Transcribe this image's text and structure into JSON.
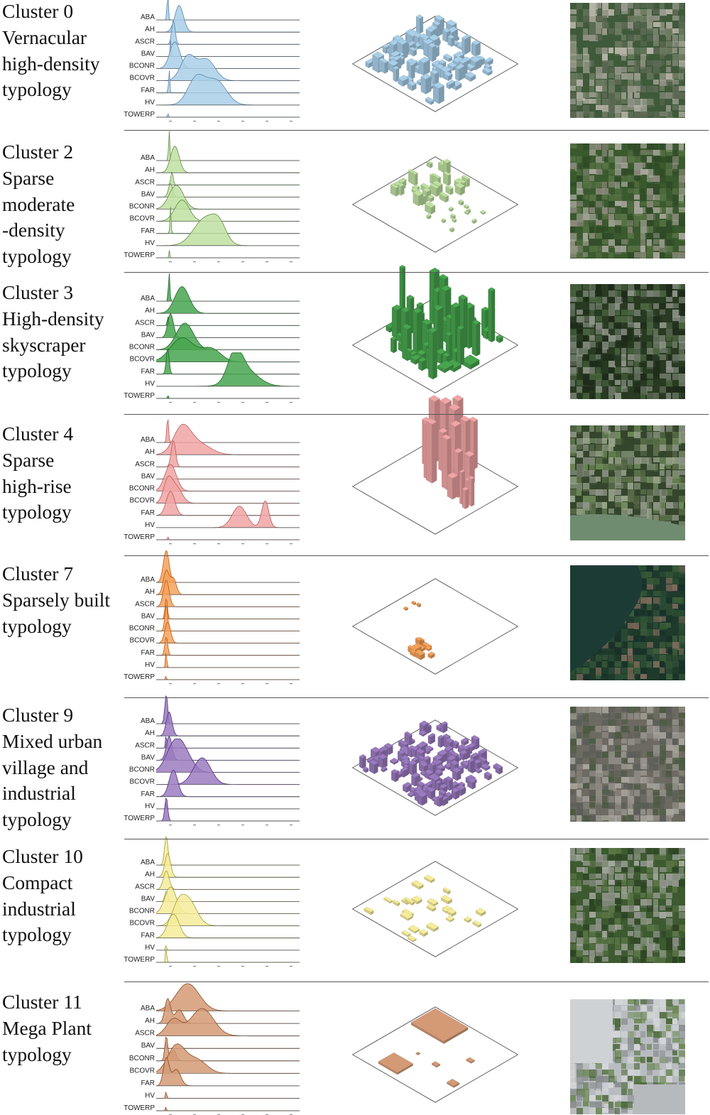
{
  "figure": {
    "metrics": [
      "ABA",
      "AH",
      "ASCR",
      "BAV",
      "BCONR",
      "BCOVR",
      "FAR",
      "HV",
      "TOWERP"
    ],
    "clusters": [
      {
        "id": "cluster-0",
        "label_lines": [
          "Cluster 0",
          "Vernacular",
          "high-density",
          "typology"
        ],
        "color": "#a9cfe9",
        "edge": "#5d86a6",
        "satellite_icon": "aerial-photo-icon",
        "satellite_palette": [
          "#3f5a3a",
          "#6f7d62",
          "#9a9a8e",
          "#5e6a55",
          "#b6b2a6"
        ]
      },
      {
        "id": "cluster-2",
        "label_lines": [
          "Cluster 2",
          "Sparse",
          "moderate",
          "-density",
          "typology"
        ],
        "color": "#bfe0a1",
        "edge": "#5f8a44",
        "satellite_icon": "aerial-photo-icon",
        "satellite_palette": [
          "#3a5a2e",
          "#587346",
          "#8e8a7e",
          "#2f4a27",
          "#a8a69c"
        ]
      },
      {
        "id": "cluster-3",
        "label_lines": [
          "Cluster 3",
          "High-density",
          "skyscraper",
          "typology"
        ],
        "color": "#48a54f",
        "edge": "#1f6a28",
        "satellite_icon": "aerial-photo-icon",
        "satellite_palette": [
          "#283a22",
          "#4b6640",
          "#8d9488",
          "#1e2a1a",
          "#6c7866"
        ]
      },
      {
        "id": "cluster-4",
        "label_lines": [
          "Cluster 4",
          "Sparse",
          "high-rise",
          "typology"
        ],
        "color": "#f1a5a5",
        "edge": "#b85a5a",
        "satellite_icon": "aerial-photo-icon",
        "satellite_palette": [
          "#34462c",
          "#5b6e4a",
          "#8e9486",
          "#6f8b5a",
          "#98a48a"
        ]
      },
      {
        "id": "cluster-7",
        "label_lines": [
          "Cluster 7",
          "Sparsely built",
          "typology"
        ],
        "color": "#f4a25a",
        "edge": "#c05a12",
        "satellite_icon": "aerial-photo-icon",
        "satellite_palette": [
          "#1f3a2c",
          "#2c4d34",
          "#3d5f3a",
          "#17302a",
          "#7c6a5a"
        ]
      },
      {
        "id": "cluster-9",
        "label_lines": [
          "Cluster 9",
          "Mixed urban",
          "village and",
          "industrial",
          "typology"
        ],
        "color": "#9b7bc0",
        "edge": "#4f2f80",
        "satellite_icon": "aerial-photo-icon",
        "satellite_palette": [
          "#6d6a62",
          "#8e8b84",
          "#4a5a40",
          "#a7a49c",
          "#5b5e58"
        ]
      },
      {
        "id": "cluster-10",
        "label_lines": [
          "Cluster 10",
          "Compact",
          "industrial",
          "typology"
        ],
        "color": "#f6ec9a",
        "edge": "#a39a3a",
        "satellite_icon": "aerial-photo-icon",
        "satellite_palette": [
          "#3d5a30",
          "#5b7646",
          "#8f938a",
          "#2d4424",
          "#a4a89e"
        ]
      },
      {
        "id": "cluster-11",
        "label_lines": [
          "Cluster 11",
          "Mega Plant",
          "typology"
        ],
        "color": "#d49a76",
        "edge": "#8a4a22",
        "satellite_icon": "aerial-photo-icon",
        "satellite_palette": [
          "#b8bcc0",
          "#d4d6d8",
          "#4d6a3a",
          "#8a8e90",
          "#6e8a58"
        ]
      }
    ]
  }
}
